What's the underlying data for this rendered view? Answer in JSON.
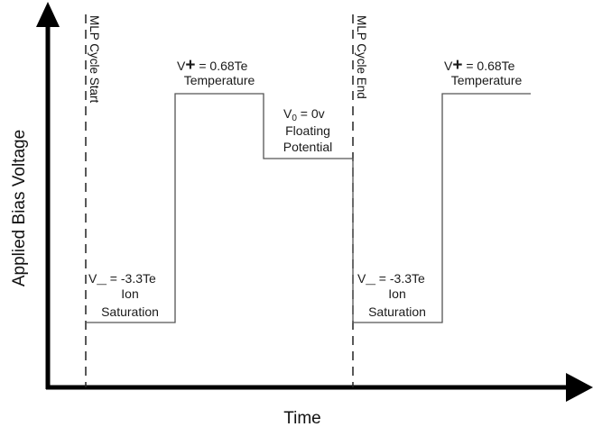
{
  "axes": {
    "y_label": "Applied Bias Voltage",
    "x_label": "Time"
  },
  "markers": {
    "cycle_start": "MLP Cycle Start",
    "cycle_end": "MLP Cycle End"
  },
  "labels": {
    "ion_sat_1": {
      "symbol": "V",
      "mark": "_",
      "value": " = -3.3Te",
      "line2": "Ion",
      "line3": "Saturation"
    },
    "temp_1": {
      "symbol": "V",
      "mark": "+",
      "value": " = 0.68Te",
      "line2": "Temperature"
    },
    "float": {
      "symbol": "V",
      "sub": "0",
      "value": " = 0v",
      "line2": "Floating",
      "line3": "Potential"
    },
    "ion_sat_2": {
      "symbol": "V",
      "mark": "_",
      "value": " = -3.3Te",
      "line2": "Ion",
      "line3": "Saturation"
    },
    "temp_2": {
      "symbol": "V",
      "mark": "+",
      "value": " = 0.68Te",
      "line2": "Temperature"
    }
  },
  "colors": {
    "axis": "#000000",
    "waveform": "#555555",
    "marker_line": "#222222"
  }
}
